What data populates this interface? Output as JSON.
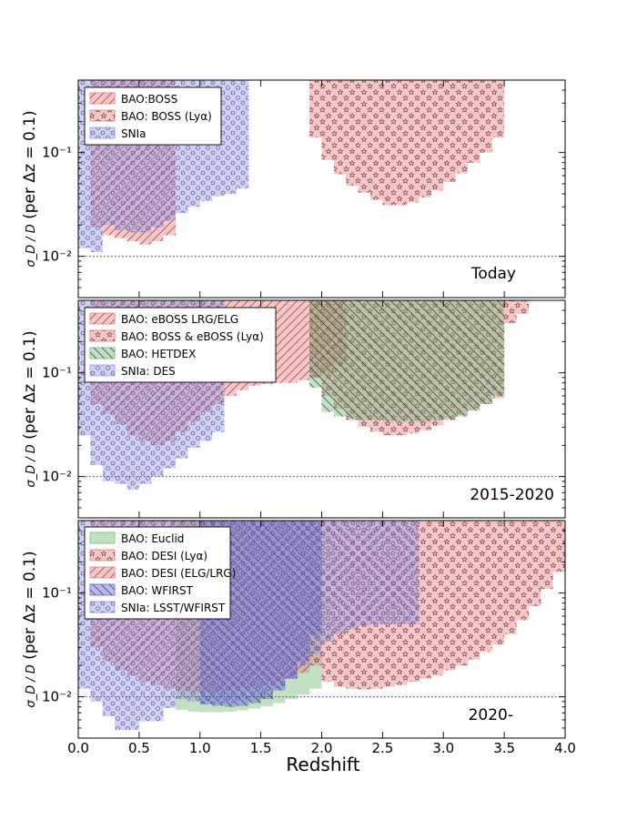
{
  "figure": {
    "ylabel": "σD/D (per Δz = 0.1)",
    "ylabel_frac": "σ_D / D",
    "ylabel_rest": " (per Δz = 0.1)",
    "ytick_labels": [
      "10⁻²",
      "10⁻¹"
    ],
    "xtick_labels": [
      "0.0",
      "0.5",
      "1.0",
      "1.5",
      "2.0",
      "2.5",
      "3.0",
      "3.5",
      "4.0"
    ],
    "xlabel": "Redshift"
  },
  "chart_data": [
    {
      "type": "area",
      "panel_label": "Today",
      "xlim": [
        0,
        4
      ],
      "ylim": [
        0.004,
        0.5
      ],
      "yscale": "log",
      "reference_line": 0.01,
      "legend_placement": "top-left",
      "series": [
        {
          "name": "BAO:BOSS",
          "color": "#f08080",
          "pattern": "hatch",
          "x_start": 0.1,
          "x_step": 0.1,
          "top": [
            0.5,
            0.5,
            0.5,
            0.5,
            0.5,
            0.5,
            0.5
          ],
          "bottom": [
            0.019,
            0.016,
            0.015,
            0.014,
            0.013,
            0.014,
            0.016
          ]
        },
        {
          "name": "BAO: BOSS (Lyα)",
          "color": "#f08080",
          "pattern": "stars",
          "x_start": 1.9,
          "x_step": 0.1,
          "top": [
            0.5,
            0.5,
            0.5,
            0.5,
            0.5,
            0.5,
            0.5,
            0.5,
            0.5,
            0.5,
            0.5,
            0.5,
            0.5,
            0.5,
            0.5,
            0.5
          ],
          "bottom": [
            0.14,
            0.085,
            0.062,
            0.048,
            0.041,
            0.035,
            0.031,
            0.031,
            0.033,
            0.037,
            0.043,
            0.052,
            0.063,
            0.08,
            0.1,
            0.14
          ]
        },
        {
          "name": "SNIa",
          "color": "#9999ee",
          "pattern": "circles",
          "x_start": 0.0,
          "x_step": 0.1,
          "top": [
            0.5,
            0.5,
            0.5,
            0.5,
            0.5,
            0.5,
            0.5,
            0.5,
            0.5,
            0.5,
            0.5,
            0.5,
            0.5,
            0.5
          ],
          "bottom": [
            0.012,
            0.011,
            0.02,
            0.018,
            0.017,
            0.017,
            0.019,
            0.022,
            0.026,
            0.03,
            0.034,
            0.038,
            0.04,
            0.045
          ]
        }
      ]
    },
    {
      "type": "area",
      "panel_label": "2015-2020",
      "xlim": [
        0,
        4
      ],
      "ylim": [
        0.004,
        0.5
      ],
      "yscale": "log",
      "reference_line": 0.01,
      "legend_placement": "top-left",
      "series": [
        {
          "name": "BAO: eBOSS LRG/ELG",
          "color": "#f08080",
          "pattern": "hatch",
          "x_start": 0.1,
          "x_step": 0.1,
          "top": [
            0.5,
            0.5,
            0.5,
            0.5,
            0.5,
            0.5,
            0.5,
            0.5,
            0.5,
            0.5,
            0.5,
            0.5,
            0.5,
            0.5,
            0.5,
            0.5,
            0.5,
            0.5,
            0.5,
            0.5,
            0.5
          ],
          "bottom": [
            0.05,
            0.04,
            0.032,
            0.025,
            0.022,
            0.02,
            0.022,
            0.027,
            0.034,
            0.042,
            0.05,
            0.06,
            0.068,
            0.075,
            0.078,
            0.08,
            0.08,
            0.085,
            0.09,
            0.1,
            0.12
          ]
        },
        {
          "name": "BAO: BOSS & eBOSS (Lyα)",
          "color": "#f08080",
          "pattern": "stars",
          "x_start": 1.9,
          "x_step": 0.1,
          "top": [
            0.5,
            0.5,
            0.5,
            0.5,
            0.5,
            0.5,
            0.5,
            0.5,
            0.5,
            0.5,
            0.5,
            0.5,
            0.5,
            0.5,
            0.5,
            0.5,
            0.5,
            0.5
          ],
          "bottom": [
            0.09,
            0.06,
            0.045,
            0.035,
            0.03,
            0.027,
            0.025,
            0.025,
            0.026,
            0.028,
            0.031,
            0.035,
            0.039,
            0.044,
            0.05,
            0.057,
            0.3,
            0.37
          ]
        },
        {
          "name": "BAO: HETDEX",
          "color": "#77bb77",
          "pattern": "hatch-reverse",
          "x_start": 1.9,
          "x_step": 0.1,
          "top": [
            0.5,
            0.5,
            0.5,
            0.5,
            0.5,
            0.5,
            0.5,
            0.5,
            0.5,
            0.5,
            0.5,
            0.5,
            0.5,
            0.5,
            0.5,
            0.5
          ],
          "bottom": [
            0.072,
            0.042,
            0.038,
            0.036,
            0.035,
            0.035,
            0.034,
            0.034,
            0.034,
            0.034,
            0.035,
            0.036,
            0.038,
            0.043,
            0.05,
            0.06
          ]
        },
        {
          "name": "SNIa: DES",
          "color": "#9999ee",
          "pattern": "circles",
          "x_start": 0.0,
          "x_step": 0.1,
          "top": [
            0.5,
            0.5,
            0.5,
            0.5,
            0.5,
            0.5,
            0.5,
            0.5,
            0.5,
            0.5,
            0.5,
            0.5
          ],
          "bottom": [
            0.025,
            0.013,
            0.009,
            0.0085,
            0.0075,
            0.0085,
            0.01,
            0.012,
            0.015,
            0.019,
            0.022,
            0.027
          ]
        }
      ]
    },
    {
      "type": "area",
      "panel_label": "2020-",
      "xlim": [
        0,
        4
      ],
      "ylim": [
        0.004,
        0.5
      ],
      "yscale": "log",
      "reference_line": 0.01,
      "legend_placement": "top-left",
      "series": [
        {
          "name": "BAO: Euclid",
          "color": "#77bb77",
          "pattern": "none",
          "x_start": 0.8,
          "x_step": 0.1,
          "top": [
            0.5,
            0.5,
            0.5,
            0.5,
            0.5,
            0.5,
            0.5,
            0.5,
            0.5,
            0.5,
            0.5,
            0.5
          ],
          "bottom": [
            0.0075,
            0.0072,
            0.0071,
            0.0071,
            0.0072,
            0.0074,
            0.0077,
            0.0081,
            0.0087,
            0.0095,
            0.0105,
            0.012
          ]
        },
        {
          "name": "BAO: DESI (Lyα)",
          "color": "#f08080",
          "pattern": "stars",
          "x_start": 1.9,
          "x_step": 0.1,
          "top": [
            0.5,
            0.5,
            0.5,
            0.5,
            0.5,
            0.5,
            0.5,
            0.5,
            0.5,
            0.5,
            0.5,
            0.5,
            0.5,
            0.5,
            0.5,
            0.5,
            0.5,
            0.5,
            0.5,
            0.5,
            0.5
          ],
          "bottom": [
            0.02,
            0.014,
            0.0125,
            0.012,
            0.0118,
            0.012,
            0.0125,
            0.013,
            0.014,
            0.015,
            0.016,
            0.018,
            0.02,
            0.023,
            0.027,
            0.032,
            0.04,
            0.055,
            0.075,
            0.11,
            0.16
          ]
        },
        {
          "name": "BAO: DESI (ELG/LRG)",
          "color": "#f08080",
          "pattern": "hatch",
          "x_start": 0.1,
          "x_step": 0.1,
          "top": [
            0.5,
            0.5,
            0.5,
            0.5,
            0.5,
            0.5,
            0.5,
            0.5,
            0.5,
            0.5,
            0.5,
            0.5,
            0.5,
            0.5,
            0.5,
            0.5,
            0.5,
            0.5
          ],
          "bottom": [
            0.03,
            0.022,
            0.018,
            0.016,
            0.014,
            0.013,
            0.012,
            0.0115,
            0.011,
            0.011,
            0.0112,
            0.0116,
            0.012,
            0.0125,
            0.013,
            0.014,
            0.015,
            0.017
          ]
        },
        {
          "name": "BAO: WFIRST",
          "color": "#6666dd",
          "pattern": "hatch-reverse",
          "x_start": 1.0,
          "x_step": 0.1,
          "top": [
            0.5,
            0.5,
            0.5,
            0.5,
            0.5,
            0.5,
            0.5,
            0.5,
            0.5,
            0.5
          ],
          "bottom": [
            0.0085,
            0.0082,
            0.008,
            0.0082,
            0.0087,
            0.0095,
            0.0115,
            0.015,
            0.022,
            0.04
          ]
        },
        {
          "name": "SNIa: LSST/WFIRST",
          "color": "#9999ee",
          "pattern": "circles",
          "x_start": 0.0,
          "x_step": 0.1,
          "top": [
            0.5,
            0.5,
            0.5,
            0.5,
            0.5,
            0.5,
            0.5,
            0.5,
            0.5,
            0.5,
            0.5,
            0.5,
            0.5,
            0.5,
            0.5,
            0.5,
            0.5,
            0.5,
            0.5,
            0.5,
            0.5,
            0.5,
            0.5,
            0.5,
            0.5,
            0.5,
            0.5,
            0.5
          ],
          "bottom": [
            0.012,
            0.009,
            0.0065,
            0.0048,
            0.0048,
            0.0058,
            0.0058,
            0.0078,
            0.0095,
            0.009,
            0.0085,
            0.0085,
            0.0088,
            0.0093,
            0.0098,
            0.0104,
            0.012,
            0.015,
            0.02,
            0.026,
            0.034,
            0.04,
            0.045,
            0.048,
            0.05,
            0.05,
            0.05,
            0.05
          ]
        }
      ]
    }
  ]
}
